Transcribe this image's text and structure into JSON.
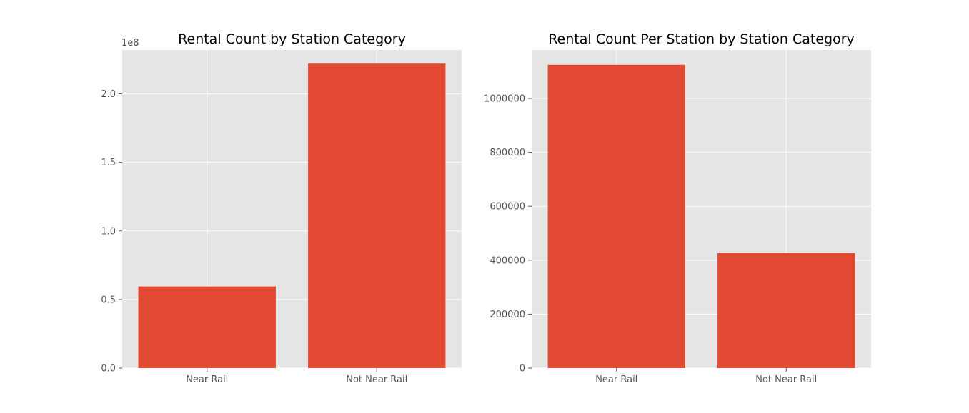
{
  "chart_data": [
    {
      "type": "bar",
      "title": "Rental Count by Station Category",
      "categories": [
        "Near Rail",
        "Not Near Rail"
      ],
      "values": [
        59500000,
        222000000
      ],
      "xlabel": "",
      "ylabel": "",
      "ylim": [
        0,
        232000000
      ],
      "yticks": [
        0,
        50000000,
        100000000,
        150000000,
        200000000
      ],
      "ytick_labels": [
        "0.0",
        "0.5",
        "1.0",
        "1.5",
        "2.0"
      ],
      "y_offset_label": "1e8",
      "grid": true,
      "bar_color": "#E24A33",
      "background_color": "#E5E5E5"
    },
    {
      "type": "bar",
      "title": "Rental Count Per Station by Station Category",
      "categories": [
        "Near Rail",
        "Not Near Rail"
      ],
      "values": [
        1125000,
        427000
      ],
      "xlabel": "",
      "ylabel": "",
      "ylim": [
        0,
        1180000
      ],
      "yticks": [
        0,
        200000,
        400000,
        600000,
        800000,
        1000000
      ],
      "ytick_labels": [
        "0",
        "200000",
        "400000",
        "600000",
        "800000",
        "1000000"
      ],
      "y_offset_label": "",
      "grid": true,
      "bar_color": "#E24A33",
      "background_color": "#E5E5E5"
    }
  ]
}
